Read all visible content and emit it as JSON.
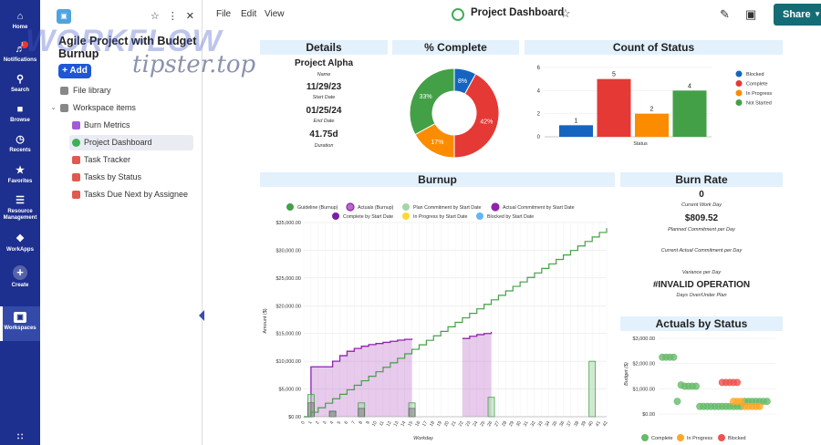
{
  "rail": {
    "items": [
      {
        "label": "Home",
        "icon": "home-icon"
      },
      {
        "label": "Notifications",
        "icon": "bell-icon",
        "badge": "1"
      },
      {
        "label": "Search",
        "icon": "search-icon"
      },
      {
        "label": "Browse",
        "icon": "folder-icon"
      },
      {
        "label": "Recents",
        "icon": "clock-icon"
      },
      {
        "label": "Favorites",
        "icon": "star-icon"
      },
      {
        "label": "Resource Management",
        "icon": "resource-icon"
      },
      {
        "label": "WorkApps",
        "icon": "workapps-icon"
      },
      {
        "label": "Create",
        "icon": "plus-icon"
      },
      {
        "label": "Workspaces",
        "icon": "workspace-icon"
      }
    ]
  },
  "sidebar": {
    "title": "Agile Project with Budget Burnup",
    "add_label": "+ Add",
    "file_library": "File library",
    "workspace_items": "Workspace items",
    "items": [
      {
        "label": "Burn Metrics",
        "color": "#a35ad6"
      },
      {
        "label": "Project Dashboard",
        "color": "#3fae5a"
      },
      {
        "label": "Task Tracker",
        "color": "#e05a4f"
      },
      {
        "label": "Tasks by Status",
        "color": "#e05a4f"
      },
      {
        "label": "Tasks Due Next by Assignee",
        "color": "#e05a4f"
      }
    ]
  },
  "watermark": {
    "line1": "WORKFLOW",
    "line2": "tipster.top"
  },
  "topbar": {
    "menu": [
      "File",
      "Edit",
      "View"
    ],
    "title": "Project Dashboard",
    "share_label": "Share"
  },
  "details": {
    "header": "Details",
    "fields": [
      {
        "value": "Project Alpha",
        "label": "Name"
      },
      {
        "value": "11/29/23",
        "label": "Start Date"
      },
      {
        "value": "01/25/24",
        "label": "End Date"
      },
      {
        "value": "41.75d",
        "label": "Duration"
      }
    ]
  },
  "burn_rate": {
    "header": "Burn Rate",
    "fields": [
      {
        "value": "0",
        "label": "Current Work Day"
      },
      {
        "value": "$809.52",
        "label": "Planned Commitment per Day"
      },
      {
        "value": "",
        "label": "Current Actual Commitment per Day"
      },
      {
        "value": "",
        "label": "Variance per Day"
      },
      {
        "value": "#INVALID OPERATION",
        "label": "Days Over/Under Plan"
      }
    ]
  },
  "chart_data": [
    {
      "type": "pie",
      "title": "% Complete",
      "donut": true,
      "categories": [
        "Blocked",
        "Complete",
        "In Progress",
        "Not Started"
      ],
      "values": [
        8,
        42,
        17,
        33
      ],
      "colors": [
        "#1565c0",
        "#e53935",
        "#fb8c00",
        "#43a047"
      ],
      "labels": [
        "8%",
        "42%",
        "17%",
        "33%"
      ]
    },
    {
      "type": "bar",
      "title": "Count of Status",
      "categories": [
        "Blocked",
        "Complete",
        "In Progress",
        "Not Started"
      ],
      "values": [
        1,
        5,
        2,
        4
      ],
      "colors": [
        "#1565c0",
        "#e53935",
        "#fb8c00",
        "#43a047"
      ],
      "xlabel": "Status",
      "ylim": [
        0,
        6
      ],
      "yticks": [
        "0",
        "2",
        "4",
        "6"
      ],
      "legend": "right"
    },
    {
      "type": "line",
      "title": "Burnup",
      "xlabel": "Workday",
      "ylabel": "Amount ($)",
      "ylim": [
        0,
        35000
      ],
      "yticks": [
        "$0.00",
        "$5,000.00",
        "$10,000.00",
        "$15,000.00",
        "$20,000.00",
        "$25,000.00",
        "$30,000.00",
        "$35,000.00"
      ],
      "x": [
        "0",
        "1",
        "2",
        "3",
        "4",
        "5",
        "6",
        "7",
        "8",
        "9",
        "10",
        "11",
        "12",
        "13",
        "14",
        "15",
        "16",
        "17",
        "18",
        "19",
        "20",
        "21",
        "22",
        "23",
        "24",
        "25",
        "26",
        "27",
        "28",
        "29",
        "30",
        "31",
        "32",
        "33",
        "34",
        "35",
        "36",
        "37",
        "38",
        "39",
        "40",
        "41",
        "42"
      ],
      "legend": [
        "Guideline (Burnup)",
        "Actuals (Burnup)",
        "Plan Commitment by Start Date",
        "Actual Commitment by Start Date",
        "Complete by Start Date",
        "In Progress by Start Date",
        "Blocked by Start Date"
      ],
      "legend_colors": [
        "#43a047",
        "#ba68c8",
        "#a5d6a7",
        "#8e24aa",
        "#7b1fa2",
        "#fdd835",
        "#64b5f6"
      ],
      "series": [
        {
          "name": "Guideline (Burnup)",
          "values": [
            0,
            810,
            1620,
            2430,
            3240,
            4050,
            4860,
            5670,
            6480,
            7290,
            8100,
            8910,
            9720,
            10530,
            11340,
            12150,
            12960,
            13770,
            14580,
            15390,
            16200,
            17010,
            17820,
            18630,
            19440,
            20250,
            21060,
            21870,
            22680,
            23490,
            24290,
            25100,
            25910,
            26720,
            27530,
            28340,
            29150,
            29960,
            30770,
            31580,
            32390,
            33200,
            34000
          ]
        },
        {
          "name": "Actuals (Burnup)",
          "values": [
            0,
            9000,
            9000,
            9000,
            10000,
            11000,
            11800,
            12300,
            12700,
            13000,
            13200,
            13400,
            13600,
            13800,
            13950,
            14100,
            null,
            null,
            null,
            null,
            null,
            null,
            14100,
            14500,
            14800,
            15000,
            15300,
            null,
            null,
            null,
            null,
            null,
            null,
            null,
            null,
            null,
            null,
            null,
            null,
            null,
            null,
            null,
            null
          ]
        },
        {
          "name": "Plan Commitment by Start Date",
          "values": [
            0,
            4000,
            0,
            0,
            1000,
            0,
            0,
            0,
            2500,
            0,
            0,
            0,
            0,
            0,
            0,
            2500,
            0,
            0,
            0,
            0,
            0,
            0,
            0,
            0,
            0,
            0,
            3500,
            0,
            0,
            0,
            0,
            0,
            0,
            0,
            0,
            0,
            0,
            0,
            0,
            0,
            10000,
            0,
            0
          ]
        },
        {
          "name": "Complete by Start Date",
          "values": [
            0,
            2500,
            0,
            0,
            1000,
            0,
            0,
            0,
            1500,
            0,
            0,
            0,
            0,
            0,
            0,
            1500,
            0,
            0,
            0,
            0,
            0,
            0,
            0,
            0,
            0,
            0,
            0,
            0,
            0,
            0,
            0,
            0,
            0,
            0,
            0,
            0,
            0,
            0,
            0,
            0,
            0,
            0,
            0
          ]
        }
      ]
    },
    {
      "type": "scatter",
      "title": "Actuals by Status",
      "ylabel": "Budget ($)",
      "ylim": [
        0,
        3000
      ],
      "yticks": [
        "$0.00",
        "$1,000.00",
        "$2,000.00",
        "$3,000.00"
      ],
      "legend": "bottom",
      "series": [
        {
          "name": "Complete",
          "color": "#66bb6a",
          "points": [
            [
              1,
              2250
            ],
            [
              2,
              2250
            ],
            [
              3,
              2250
            ],
            [
              4,
              2250
            ],
            [
              5,
              500
            ],
            [
              6,
              1150
            ],
            [
              7,
              1100
            ],
            [
              8,
              1100
            ],
            [
              9,
              1100
            ],
            [
              10,
              1100
            ],
            [
              11,
              300
            ],
            [
              12,
              300
            ],
            [
              13,
              300
            ],
            [
              14,
              300
            ],
            [
              15,
              300
            ],
            [
              16,
              300
            ],
            [
              17,
              300
            ],
            [
              18,
              300
            ],
            [
              19,
              300
            ],
            [
              20,
              300
            ],
            [
              21,
              300
            ],
            [
              22,
              300
            ],
            [
              23,
              500
            ],
            [
              24,
              500
            ],
            [
              25,
              500
            ],
            [
              26,
              500
            ],
            [
              27,
              500
            ],
            [
              28,
              500
            ],
            [
              29,
              500
            ]
          ]
        },
        {
          "name": "In Progress",
          "color": "#ffa726",
          "points": [
            [
              20,
              500
            ],
            [
              21,
              500
            ],
            [
              22,
              500
            ],
            [
              23,
              300
            ],
            [
              24,
              300
            ],
            [
              25,
              300
            ],
            [
              26,
              300
            ],
            [
              27,
              300
            ]
          ]
        },
        {
          "name": "Blocked",
          "color": "#ef5350",
          "points": [
            [
              17,
              1250
            ],
            [
              18,
              1250
            ],
            [
              19,
              1250
            ],
            [
              20,
              1250
            ],
            [
              21,
              1250
            ]
          ]
        }
      ]
    }
  ]
}
